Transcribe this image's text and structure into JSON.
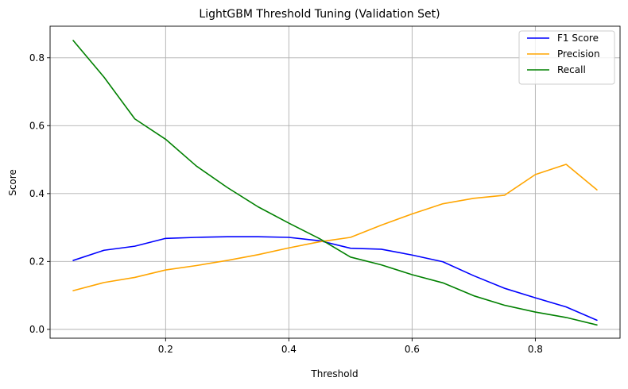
{
  "chart_data": {
    "type": "line",
    "title": "LightGBM Threshold Tuning (Validation Set)",
    "xlabel": "Threshold",
    "ylabel": "Score",
    "xlim": [
      0.0125,
      0.9375
    ],
    "ylim": [
      -0.026,
      0.893
    ],
    "xticks": [
      0.2,
      0.4,
      0.6,
      0.8
    ],
    "xtick_labels": [
      "0.2",
      "0.4",
      "0.6",
      "0.8"
    ],
    "yticks": [
      0.0,
      0.2,
      0.4,
      0.6,
      0.8
    ],
    "ytick_labels": [
      "0.0",
      "0.2",
      "0.4",
      "0.6",
      "0.8"
    ],
    "grid": true,
    "legend_position": "top-right",
    "x": [
      0.05,
      0.1,
      0.15,
      0.2,
      0.25,
      0.3,
      0.35,
      0.4,
      0.45,
      0.5,
      0.55,
      0.6,
      0.65,
      0.7,
      0.75,
      0.8,
      0.85,
      0.9
    ],
    "series": [
      {
        "name": "F1 Score",
        "color": "#0000ff",
        "values": [
          0.203,
          0.233,
          0.245,
          0.268,
          0.271,
          0.273,
          0.273,
          0.271,
          0.261,
          0.239,
          0.236,
          0.219,
          0.199,
          0.158,
          0.121,
          0.093,
          0.066,
          0.027
        ]
      },
      {
        "name": "Precision",
        "color": "#ffa500",
        "values": [
          0.114,
          0.138,
          0.153,
          0.175,
          0.188,
          0.203,
          0.22,
          0.24,
          0.258,
          0.271,
          0.307,
          0.34,
          0.37,
          0.386,
          0.395,
          0.456,
          0.486,
          0.411
        ]
      },
      {
        "name": "Recall",
        "color": "#008000",
        "values": [
          0.851,
          0.743,
          0.62,
          0.56,
          0.481,
          0.418,
          0.361,
          0.313,
          0.267,
          0.213,
          0.19,
          0.161,
          0.137,
          0.099,
          0.071,
          0.051,
          0.035,
          0.013
        ]
      }
    ]
  }
}
